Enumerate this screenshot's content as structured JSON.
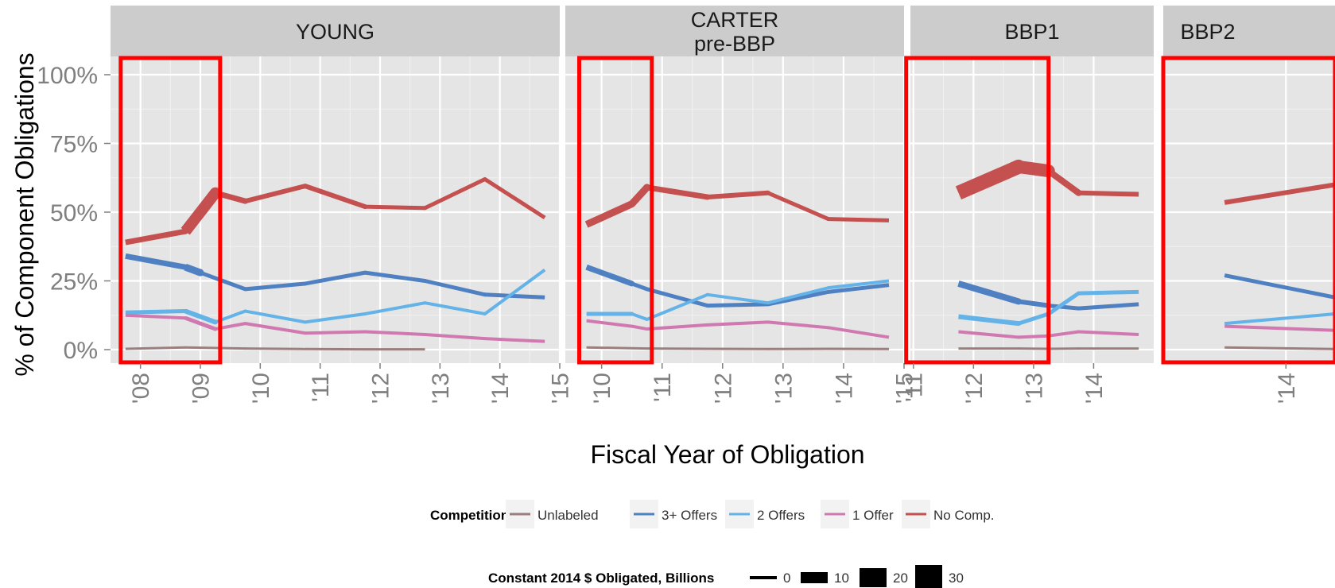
{
  "chart_data": {
    "type": "line",
    "ylabel": "% of Component Obligations",
    "xlabel": "Fiscal Year of Obligation",
    "ylim": [
      0,
      1
    ],
    "y_ticks": [
      {
        "value": 0,
        "label": "0%"
      },
      {
        "value": 0.25,
        "label": "25%"
      },
      {
        "value": 0.5,
        "label": "50%"
      },
      {
        "value": 0.75,
        "label": "75%"
      },
      {
        "value": 1.0,
        "label": "100%"
      }
    ],
    "grid": true,
    "legend_position": "bottom",
    "colors": {
      "Unlabeled": "#9b7f7f",
      "3+ Offers": "#4f81c2",
      "2 Offers": "#64b3e8",
      "1 Offer": "#cf79b0",
      "No Comp.": "#c4504f"
    },
    "panel_bg": "#e5e5e5",
    "strip_bg": "#cccccc",
    "highlight_color": "#ff0000",
    "panels": [
      {
        "label_lines": [
          "YOUNG"
        ],
        "xlim": [
          2007.5,
          2015.0
        ],
        "x_ticks": [
          {
            "value": 2008,
            "label": "'08"
          },
          {
            "value": 2009,
            "label": "'09"
          },
          {
            "value": 2010,
            "label": "'10"
          },
          {
            "value": 2011,
            "label": "'11"
          },
          {
            "value": 2012,
            "label": "'12"
          },
          {
            "value": 2013,
            "label": "'13"
          },
          {
            "value": 2014,
            "label": "'14"
          },
          {
            "value": 2015,
            "label": "'15"
          }
        ],
        "highlight": [
          2007.67,
          2009.33
        ],
        "series": [
          {
            "name": "Unlabeled",
            "x": [
              2007.75,
              2008.75,
              2009.75,
              2010.75,
              2011.75,
              2012.75
            ],
            "y": [
              0.003,
              0.008,
              0.004,
              0.002,
              0.001,
              0.001
            ],
            "width": [
              3,
              3,
              3,
              3,
              3,
              3
            ]
          },
          {
            "name": "3+ Offers",
            "x": [
              2007.75,
              2008.75,
              2009.0,
              2009.75,
              2010.75,
              2011.75,
              2012.75,
              2013.75,
              2014.75
            ],
            "y": [
              0.34,
              0.3,
              0.28,
              0.22,
              0.24,
              0.28,
              0.25,
              0.2,
              0.19
            ],
            "width": [
              5,
              7,
              9,
              5,
              5,
              5,
              5,
              5,
              5
            ]
          },
          {
            "name": "2 Offers",
            "x": [
              2007.75,
              2008.75,
              2009.25,
              2009.75,
              2010.75,
              2011.75,
              2012.75,
              2013.75,
              2014.75
            ],
            "y": [
              0.135,
              0.14,
              0.1,
              0.14,
              0.1,
              0.13,
              0.17,
              0.13,
              0.29
            ],
            "width": [
              4,
              5,
              6,
              4,
              4,
              4,
              4,
              4,
              4
            ]
          },
          {
            "name": "1 Offer",
            "x": [
              2007.75,
              2008.75,
              2009.25,
              2009.75,
              2010.75,
              2011.75,
              2012.75,
              2013.75,
              2014.75
            ],
            "y": [
              0.125,
              0.115,
              0.075,
              0.095,
              0.06,
              0.065,
              0.055,
              0.04,
              0.03
            ],
            "width": [
              4,
              4,
              5,
              4,
              4,
              4,
              4,
              4,
              4
            ]
          },
          {
            "name": "No Comp.",
            "x": [
              2007.75,
              2008.75,
              2009.25,
              2009.75,
              2010.75,
              2011.75,
              2012.75,
              2013.75,
              2014.75
            ],
            "y": [
              0.39,
              0.43,
              0.57,
              0.54,
              0.595,
              0.52,
              0.515,
              0.62,
              0.48
            ],
            "width": [
              5,
              7,
              14,
              7,
              6,
              6,
              5,
              5,
              5
            ]
          }
        ]
      },
      {
        "label_lines": [
          "CARTER",
          "pre-BBP"
        ],
        "xlim": [
          2009.4,
          2015.0
        ],
        "x_ticks": [
          {
            "value": 2010,
            "label": "'10"
          },
          {
            "value": 2011,
            "label": "'11"
          },
          {
            "value": 2012,
            "label": "'12"
          },
          {
            "value": 2013,
            "label": "'13"
          },
          {
            "value": 2014,
            "label": "'14"
          },
          {
            "value": 2015,
            "label": "'15"
          }
        ],
        "highlight": [
          2009.63,
          2010.83
        ],
        "series": [
          {
            "name": "Unlabeled",
            "x": [
              2009.75,
              2010.75,
              2011.75,
              2012.75,
              2013.75,
              2014.75
            ],
            "y": [
              0.008,
              0.004,
              0.003,
              0.002,
              0.003,
              0.002
            ],
            "width": [
              3,
              3,
              3,
              3,
              3,
              3
            ]
          },
          {
            "name": "3+ Offers",
            "x": [
              2009.75,
              2010.5,
              2010.75,
              2011.75,
              2012.75,
              2013.75,
              2014.75
            ],
            "y": [
              0.3,
              0.24,
              0.22,
              0.16,
              0.165,
              0.21,
              0.235
            ],
            "width": [
              6,
              7,
              5,
              5,
              5,
              5,
              5
            ]
          },
          {
            "name": "2 Offers",
            "x": [
              2009.75,
              2010.5,
              2010.75,
              2011.75,
              2012.75,
              2013.75,
              2014.75
            ],
            "y": [
              0.13,
              0.13,
              0.11,
              0.2,
              0.17,
              0.225,
              0.25
            ],
            "width": [
              5,
              5,
              4,
              4,
              4,
              4,
              4
            ]
          },
          {
            "name": "1 Offer",
            "x": [
              2009.75,
              2010.5,
              2010.75,
              2011.75,
              2012.75,
              2013.75,
              2014.75
            ],
            "y": [
              0.105,
              0.085,
              0.075,
              0.09,
              0.1,
              0.08,
              0.045
            ],
            "width": [
              4,
              4,
              4,
              4,
              4,
              4,
              4
            ]
          },
          {
            "name": "No Comp.",
            "x": [
              2009.75,
              2010.5,
              2010.75,
              2011.75,
              2012.75,
              2013.75,
              2014.75
            ],
            "y": [
              0.455,
              0.53,
              0.59,
              0.555,
              0.57,
              0.475,
              0.47
            ],
            "width": [
              8,
              9,
              9,
              7,
              6,
              5,
              5
            ]
          }
        ]
      },
      {
        "label_lines": [
          "BBP1"
        ],
        "xlim": [
          2010.95,
          2015.0
        ],
        "x_ticks": [
          {
            "value": 2011,
            "label": "'11"
          },
          {
            "value": 2012,
            "label": "'12"
          },
          {
            "value": 2013,
            "label": "'13"
          },
          {
            "value": 2014,
            "label": "'14"
          }
        ],
        "highlight": [
          2010.88,
          2013.25
        ],
        "series": [
          {
            "name": "Unlabeled",
            "x": [
              2011.75,
              2012.75,
              2013.25,
              2013.75,
              2014.75
            ],
            "y": [
              0.004,
              0.004,
              0.003,
              0.004,
              0.004
            ],
            "width": [
              3,
              3,
              3,
              3,
              3
            ]
          },
          {
            "name": "3+ Offers",
            "x": [
              2011.75,
              2012.75,
              2013.25,
              2013.75,
              2014.75
            ],
            "y": [
              0.24,
              0.175,
              0.16,
              0.15,
              0.165
            ],
            "width": [
              8,
              8,
              6,
              5,
              5
            ]
          },
          {
            "name": "2 Offers",
            "x": [
              2011.75,
              2012.75,
              2013.25,
              2013.75,
              2014.75
            ],
            "y": [
              0.12,
              0.095,
              0.13,
              0.205,
              0.21
            ],
            "width": [
              6,
              6,
              5,
              5,
              5
            ]
          },
          {
            "name": "1 Offer",
            "x": [
              2011.75,
              2012.75,
              2013.25,
              2013.75,
              2014.75
            ],
            "y": [
              0.065,
              0.045,
              0.05,
              0.065,
              0.055
            ],
            "width": [
              4,
              4,
              4,
              4,
              4
            ]
          },
          {
            "name": "No Comp.",
            "x": [
              2011.75,
              2012.75,
              2013.25,
              2013.75,
              2014.75
            ],
            "y": [
              0.57,
              0.665,
              0.65,
              0.57,
              0.565
            ],
            "width": [
              14,
              18,
              16,
              8,
              6
            ]
          }
        ]
      },
      {
        "label_lines": [
          "BBP2"
        ],
        "xlim": [
          2013.5,
          2014.2
        ],
        "x_ticks": [
          {
            "value": 2014,
            "label": "'14"
          }
        ],
        "highlight": [
          2013.5,
          2014.2
        ],
        "series": [
          {
            "name": "Unlabeled",
            "x": [
              2013.75,
              2014.2
            ],
            "y": [
              0.008,
              0.002
            ],
            "width": [
              3,
              3
            ]
          },
          {
            "name": "3+ Offers",
            "x": [
              2013.75,
              2014.2
            ],
            "y": [
              0.27,
              0.19
            ],
            "width": [
              5,
              5
            ]
          },
          {
            "name": "2 Offers",
            "x": [
              2013.75,
              2014.2
            ],
            "y": [
              0.095,
              0.13
            ],
            "width": [
              4,
              4
            ]
          },
          {
            "name": "1 Offer",
            "x": [
              2013.75,
              2014.2
            ],
            "y": [
              0.085,
              0.07
            ],
            "width": [
              4,
              4
            ]
          },
          {
            "name": "No Comp.",
            "x": [
              2013.75,
              2014.2
            ],
            "y": [
              0.535,
              0.6
            ],
            "width": [
              6,
              6
            ]
          }
        ]
      }
    ],
    "legend_competition": {
      "title": "Competition",
      "items": [
        "Unlabeled",
        "3+ Offers",
        "2 Offers",
        "1 Offer",
        "No Comp."
      ]
    },
    "legend_size": {
      "title": "Constant 2014 $ Obligated, Billions",
      "items": [
        {
          "label": "0",
          "value": 0
        },
        {
          "label": "10",
          "value": 10
        },
        {
          "label": "20",
          "value": 20
        },
        {
          "label": "30",
          "value": 30
        }
      ]
    }
  }
}
